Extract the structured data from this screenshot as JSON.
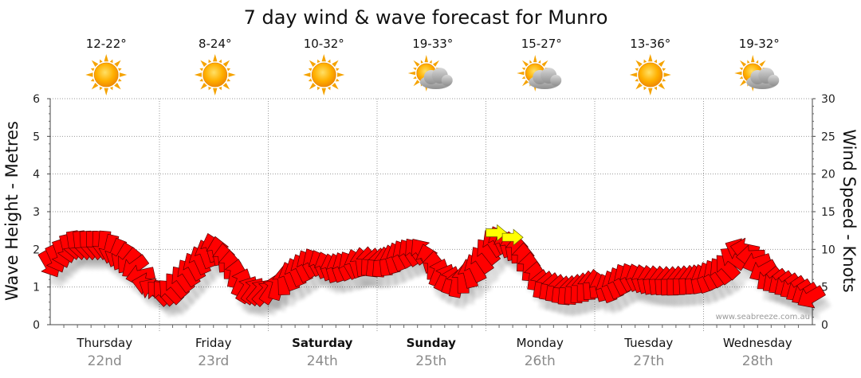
{
  "chart_data": {
    "type": "line",
    "title": "7 day wind & wave forecast for Munro",
    "ylabel_left": "Wave Height - Metres",
    "ylabel_right": "Wind Speed - Knots",
    "ylim_left": [
      0,
      6
    ],
    "ylim_right": [
      0,
      30
    ],
    "left_ticks": [
      "0",
      "1",
      "2",
      "3",
      "4",
      "5",
      "6"
    ],
    "right_ticks": [
      "0",
      "5",
      "10",
      "15",
      "20",
      "25",
      "30"
    ],
    "days": [
      {
        "name": "Thursday",
        "date": "22nd",
        "temp": "12-22°",
        "icon": "sun-icon",
        "bold": false
      },
      {
        "name": "Friday",
        "date": "23rd",
        "temp": "8-24°",
        "icon": "sun-icon",
        "bold": false
      },
      {
        "name": "Saturday",
        "date": "24th",
        "temp": "10-32°",
        "icon": "sun-icon",
        "bold": true
      },
      {
        "name": "Sunday",
        "date": "25th",
        "temp": "19-33°",
        "icon": "sun-cloud-icon",
        "bold": true
      },
      {
        "name": "Monday",
        "date": "26th",
        "temp": "15-27°",
        "icon": "sun-cloud-icon",
        "bold": false
      },
      {
        "name": "Tuesday",
        "date": "27th",
        "temp": "13-36°",
        "icon": "sun-icon",
        "bold": false
      },
      {
        "name": "Wednesday",
        "date": "28th",
        "temp": "19-32°",
        "icon": "sun-cloud-icon",
        "bold": false
      }
    ],
    "wind_series": {
      "name": "Wind Speed - Knots",
      "color": "#ff0000",
      "alt_color": "#ffff00",
      "x_days": [
        0.0,
        0.2,
        0.5,
        0.75,
        0.9,
        1.0,
        1.1,
        1.3,
        1.5,
        1.65,
        1.8,
        2.0,
        2.2,
        2.4,
        2.6,
        2.75,
        2.9,
        3.0,
        3.1,
        3.25,
        3.4,
        3.6,
        3.75,
        3.9,
        4.0,
        4.1,
        4.3,
        4.5,
        4.75,
        4.9,
        5.0,
        5.1,
        5.3,
        5.5,
        5.7,
        5.9,
        6.0,
        6.2,
        6.35,
        6.5,
        6.6,
        6.8,
        7.0
      ],
      "values": [
        8,
        10.5,
        10.5,
        8,
        5,
        4.2,
        4.5,
        7.5,
        10.5,
        8,
        4.8,
        4.2,
        6.5,
        8.5,
        7.5,
        8,
        8.5,
        8.2,
        8.5,
        9.5,
        10,
        6.5,
        5.5,
        7.5,
        9.5,
        11.5,
        10,
        5.5,
        4.5,
        5,
        5.5,
        4.8,
        6.5,
        6,
        5.8,
        6,
        6.2,
        7.5,
        10.5,
        8,
        6,
        5,
        3.5
      ],
      "directions_deg": [
        60,
        80,
        95,
        135,
        200,
        230,
        225,
        240,
        255,
        270,
        300,
        315,
        250,
        240,
        255,
        240,
        270,
        280,
        260,
        240,
        230,
        300,
        280,
        245,
        230,
        240,
        270,
        280,
        275,
        270,
        265,
        250,
        240,
        260,
        270,
        265,
        250,
        230,
        200,
        160,
        140,
        145,
        150
      ],
      "alt_color_x_days": [
        4.1,
        4.25
      ],
      "alt_color_values": [
        12.2,
        11.6
      ]
    },
    "watermark": "www.seabreeze.com.au",
    "grid": true
  }
}
